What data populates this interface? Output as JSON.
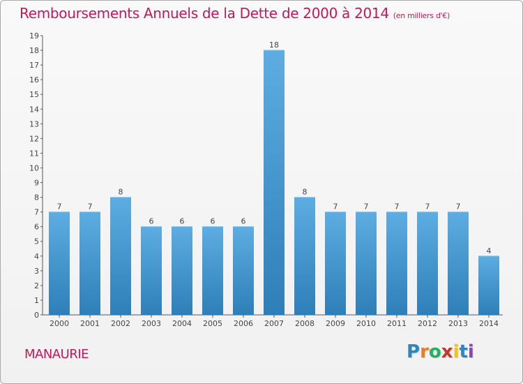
{
  "title": "Remboursements Annuels de la Dette de 2000 à 2014",
  "unit": "(en milliers d'€)",
  "commune": "MANAURIE",
  "logo": {
    "text": "Proxiti",
    "letters": [
      "P",
      "r",
      "o",
      "x",
      "i",
      "t",
      "i"
    ],
    "colors": [
      "#2e86c1",
      "#e67e22",
      "#27ae60",
      "#c0392b",
      "#f1c40f",
      "#2e86c1",
      "#8e44ad"
    ]
  },
  "colors": {
    "accent": "#c2185b",
    "bar_light": "#5dade2",
    "bar_dark": "#2e7fb8"
  },
  "chart_data": {
    "type": "bar",
    "title": "Remboursements Annuels de la Dette de 2000 à 2014",
    "categories": [
      "2000",
      "2001",
      "2002",
      "2003",
      "2004",
      "2005",
      "2006",
      "2007",
      "2008",
      "2009",
      "2010",
      "2011",
      "2012",
      "2013",
      "2014"
    ],
    "values": [
      7,
      7,
      8,
      6,
      6,
      6,
      6,
      18,
      8,
      7,
      7,
      7,
      7,
      7,
      4
    ],
    "ylim": [
      0,
      19
    ],
    "yticks": [
      0,
      1,
      2,
      3,
      4,
      5,
      6,
      7,
      8,
      9,
      10,
      11,
      12,
      13,
      14,
      15,
      16,
      17,
      18,
      19
    ],
    "grid": false,
    "xlabel": "",
    "ylabel": ""
  }
}
